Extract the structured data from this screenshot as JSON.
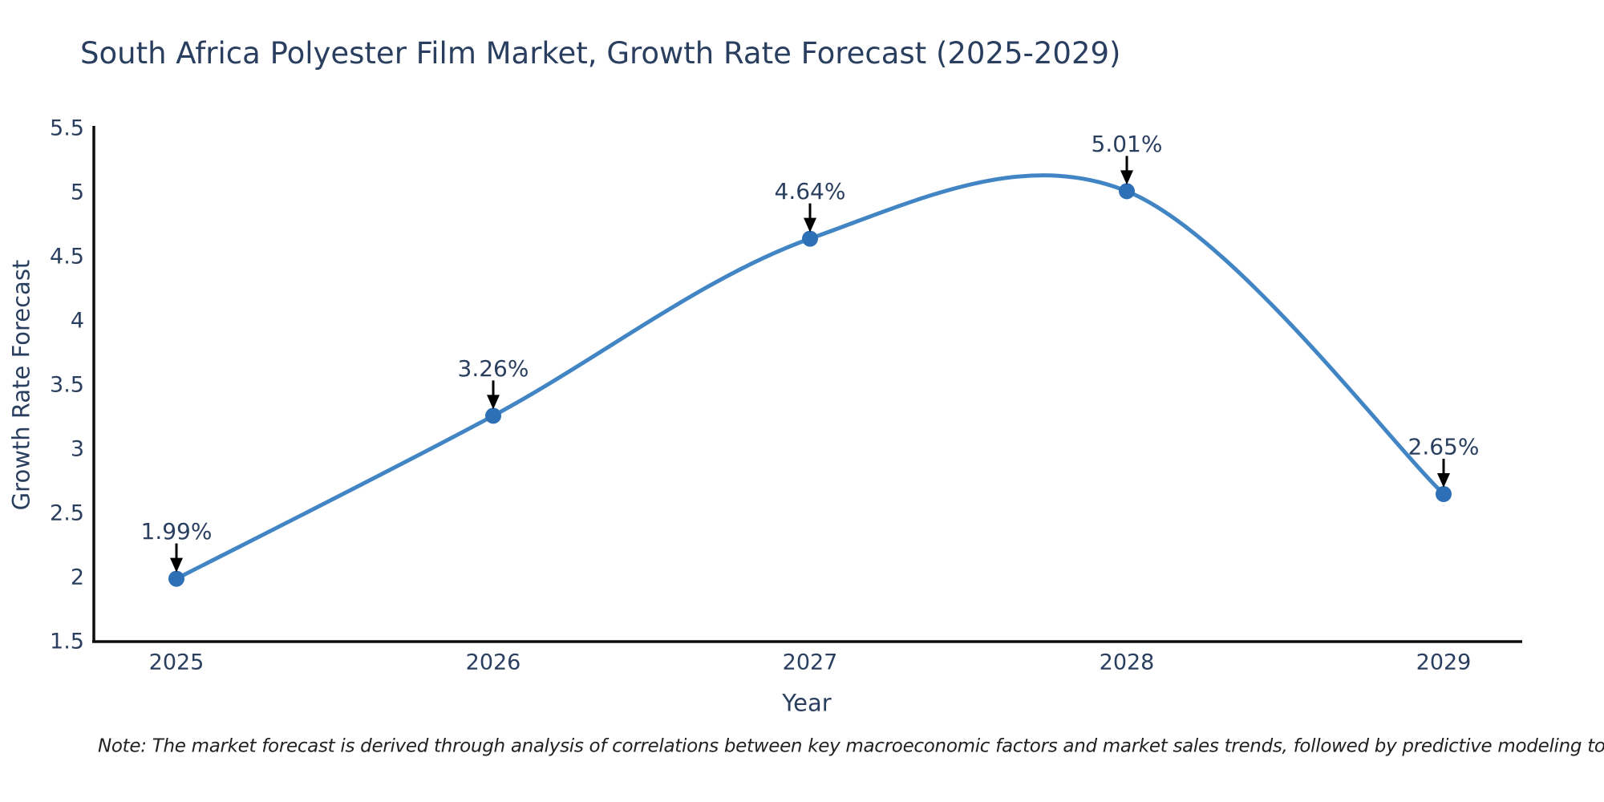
{
  "chart_data": {
    "type": "line",
    "title": "South Africa Polyester Film Market, Growth Rate Forecast (2025-2029)",
    "xlabel": "Year",
    "ylabel": "Growth Rate Forecast",
    "categories": [
      "2025",
      "2026",
      "2027",
      "2028",
      "2029"
    ],
    "series": [
      {
        "name": "Growth Rate Forecast",
        "values": [
          1.99,
          3.26,
          4.64,
          5.01,
          2.65
        ],
        "point_labels": [
          "1.99%",
          "3.26%",
          "4.64%",
          "5.01%",
          "2.65%"
        ]
      }
    ],
    "ylim": [
      1.5,
      5.5
    ],
    "yticks": [
      "1.5",
      "2",
      "2.5",
      "3",
      "3.5",
      "4",
      "4.5",
      "5",
      "5.5"
    ],
    "line_shape": "spline",
    "grid": false,
    "legend": false,
    "annotations_arrow": "down",
    "colors": {
      "line": "#4285c4",
      "marker": "#2d70b5",
      "arrow": "#000000",
      "axis_line": "#0d0d0d",
      "label_text": "#2a3f5f",
      "note_text": "#212121",
      "background": "#ffffff"
    },
    "note": "Note: The market forecast is derived through analysis of correlations between key macroeconomic factors and market sales trends, followed by predictive modeling to project future sales"
  }
}
